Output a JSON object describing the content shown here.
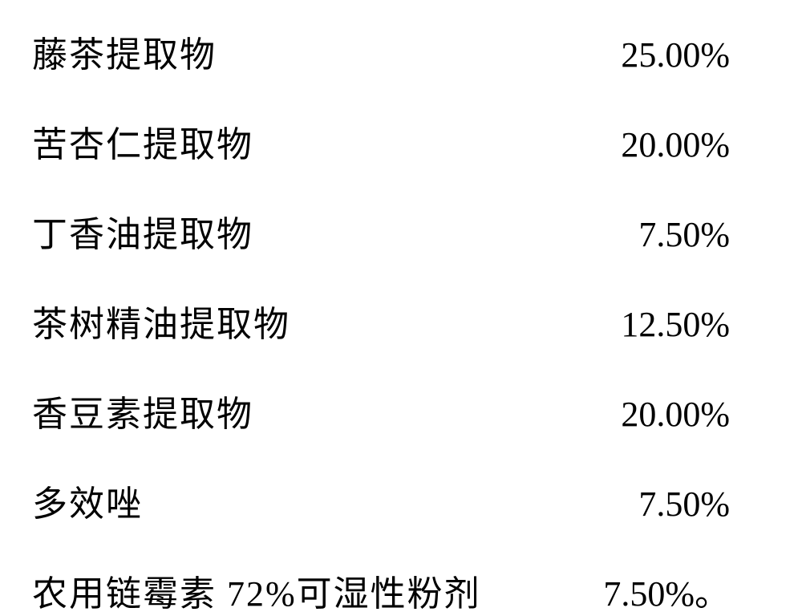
{
  "table": {
    "rows": [
      {
        "label": "藤茶提取物",
        "value": "25.00%"
      },
      {
        "label": "苦杏仁提取物",
        "value": "20.00%"
      },
      {
        "label": "丁香油提取物",
        "value": "7.50%"
      },
      {
        "label": "茶树精油提取物",
        "value": "12.50%"
      },
      {
        "label": "香豆素提取物",
        "value": "20.00%"
      },
      {
        "label": "多效唑",
        "value": "7.50%"
      },
      {
        "label": "农用链霉素 72%可湿性粉剂",
        "value": "7.50%"
      }
    ],
    "trailing_period": "。",
    "font_size": 44,
    "text_color": "#000000",
    "background_color": "#ffffff",
    "row_spacing": 48,
    "label_column_approx_width": 600,
    "value_column_approx_width": 200
  }
}
